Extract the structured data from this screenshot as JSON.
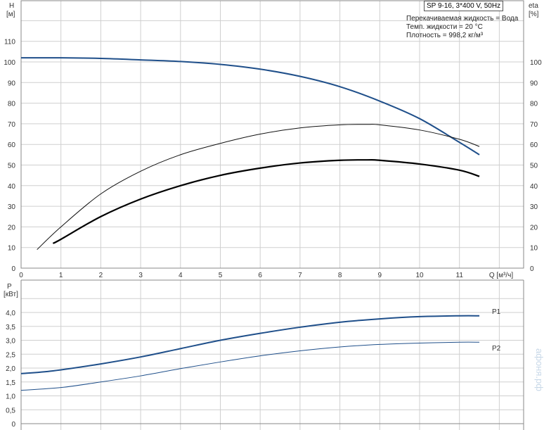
{
  "header": {
    "model": "SP 9-16, 3*400 V, 50Hz",
    "fluid": "Перекачиваемая жидкость = Вода",
    "temp": "Темп. жидкости = 20 °C",
    "density": "Плотность = 998,2 кг/м³"
  },
  "watermark": "афоня.рф",
  "colors": {
    "head": "#1f4f8a",
    "pump_eff": "#111111",
    "total_eff": "#000000",
    "p1": "#1f4f8a",
    "p2": "#1f4f8a",
    "grid": "#cfcfcf"
  },
  "chart_data": [
    {
      "type": "line",
      "ylabel": "H",
      "yunit": "[м]",
      "y2label": "eta",
      "y2unit": "[%]",
      "xlabel": "Q [м³/ч]",
      "xlim": [
        0,
        12.5
      ],
      "ylim": [
        0,
        130
      ],
      "grid": true,
      "xticks": [
        "0",
        "1",
        "2",
        "3",
        "4",
        "5",
        "6",
        "7",
        "8",
        "9",
        "10",
        "11"
      ],
      "yticks": [
        "0",
        "10",
        "20",
        "30",
        "40",
        "50",
        "60",
        "70",
        "80",
        "90",
        "100",
        "110"
      ],
      "y2ticks": [
        "0",
        "10",
        "20",
        "30",
        "40",
        "50",
        "60",
        "70",
        "80",
        "90",
        "100"
      ],
      "series": [
        {
          "id": "head",
          "x": [
            0,
            1,
            2,
            3,
            4,
            5,
            6,
            7,
            8,
            9,
            10,
            11,
            11.5
          ],
          "y": [
            102,
            102,
            101.7,
            101,
            100.2,
            98.8,
            96.5,
            93,
            88,
            81,
            72.5,
            61,
            55
          ]
        },
        {
          "id": "pump_eff",
          "x": [
            0.4,
            1,
            2,
            3,
            4,
            5,
            6,
            7,
            8,
            8.7,
            9,
            10,
            11,
            11.5
          ],
          "y": [
            9,
            20,
            36,
            47,
            55,
            60.5,
            65,
            68,
            69.5,
            69.7,
            69.5,
            67,
            62.5,
            59
          ]
        },
        {
          "id": "total_eff",
          "x": [
            0.8,
            1,
            2,
            3,
            4,
            5,
            6,
            7,
            8,
            8.7,
            9,
            10,
            11,
            11.5
          ],
          "y": [
            12,
            14,
            25,
            33.5,
            40,
            45,
            48.5,
            51,
            52.3,
            52.5,
            52.3,
            50.5,
            47.5,
            44.5
          ]
        }
      ]
    },
    {
      "type": "line",
      "ylabel": "P",
      "yunit": "[кВт]",
      "xlim": [
        0,
        12.5
      ],
      "ylim": [
        0,
        4.9
      ],
      "grid": true,
      "yticks": [
        "0",
        "0,5",
        "1,0",
        "1,5",
        "2,0",
        "2,5",
        "3,0",
        "3,5",
        "4,0"
      ],
      "series": [
        {
          "name": "P1",
          "x": [
            0,
            0.8,
            2,
            3,
            4,
            5,
            6,
            7,
            8,
            9,
            10,
            11,
            11.5
          ],
          "y": [
            1.8,
            1.9,
            2.15,
            2.4,
            2.7,
            3.0,
            3.25,
            3.47,
            3.65,
            3.77,
            3.85,
            3.88,
            3.88
          ]
        },
        {
          "name": "P2",
          "x": [
            0,
            1,
            2,
            3,
            4,
            5,
            6,
            7,
            8,
            9,
            10,
            11,
            11.5
          ],
          "y": [
            1.2,
            1.3,
            1.5,
            1.72,
            1.98,
            2.22,
            2.44,
            2.62,
            2.76,
            2.85,
            2.9,
            2.93,
            2.93
          ]
        }
      ]
    }
  ]
}
